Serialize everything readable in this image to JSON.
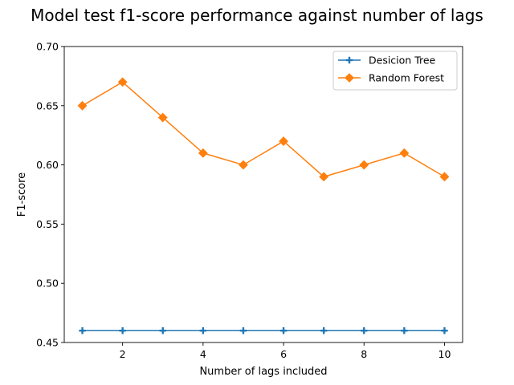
{
  "chart_data": {
    "type": "line",
    "title": "Model test f1-score performance against number of lags",
    "xlabel": "Number of lags included",
    "ylabel": "F1-score",
    "x": [
      1,
      2,
      3,
      4,
      5,
      6,
      7,
      8,
      9,
      10
    ],
    "xticks": [
      2,
      4,
      6,
      8,
      10
    ],
    "xlim": [
      0.55,
      10.45
    ],
    "ylim": [
      0.45,
      0.7
    ],
    "yticks": [
      0.45,
      0.5,
      0.55,
      0.6,
      0.65,
      0.7
    ],
    "ytick_labels": [
      "0.45",
      "0.50",
      "0.55",
      "0.60",
      "0.65",
      "0.70"
    ],
    "grid": false,
    "legend_position": "top-right",
    "series": [
      {
        "name": "Desicion Tree",
        "color": "#1f77b4",
        "marker": "plus",
        "values": [
          0.46,
          0.46,
          0.46,
          0.46,
          0.46,
          0.46,
          0.46,
          0.46,
          0.46,
          0.46
        ]
      },
      {
        "name": "Random Forest",
        "color": "#ff7f0e",
        "marker": "diamond",
        "values": [
          0.65,
          0.67,
          0.64,
          0.61,
          0.6,
          0.62,
          0.59,
          0.6,
          0.61,
          0.59
        ]
      }
    ]
  }
}
